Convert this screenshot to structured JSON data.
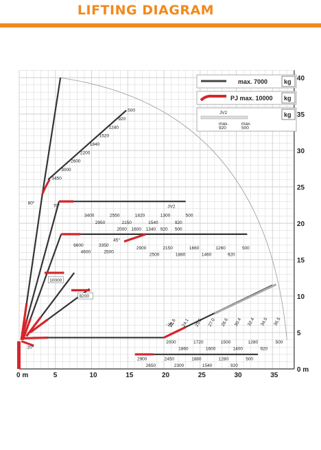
{
  "title": "LIFTING DIAGRAM",
  "legend": {
    "max_boom": "max. 7000",
    "max_pj": "PJ max. 10000",
    "unit": "kg",
    "jv2_title": "JV2",
    "jv2_left": "max.\n920",
    "jv2_right": "max.\n500"
  },
  "axes": {
    "x_ticks": [
      "0 m",
      "5",
      "10",
      "15",
      "20",
      "25",
      "30",
      "35"
    ],
    "y_ticks": [
      "5",
      "10",
      "15",
      "20",
      "25",
      "30",
      "35",
      "40"
    ],
    "y_unit": "0 m"
  },
  "angle_labels": [
    "80°",
    "70°",
    "45°",
    "20°",
    "-25°"
  ],
  "load_labels": {
    "vertical_boom": [
      "500",
      "920",
      "1240",
      "1520",
      "1840",
      "2200",
      "2600",
      "3000",
      "3450"
    ],
    "seventy_top": [
      "3400",
      "2550",
      "1820",
      "1300",
      "500"
    ],
    "seventy_bottom": [
      "2950",
      "2150",
      "1540",
      "920"
    ],
    "seventy_jv2": "JV2",
    "fortyfive_top": [
      "2000",
      "1600",
      "1340",
      "920",
      "500"
    ],
    "fortyfive_left_top": [
      "6600",
      "3350"
    ],
    "fortyfive_left_bottom": [
      "4600",
      "2500"
    ],
    "fortyfive_right_top": [
      "2900",
      "2150",
      "1660",
      "1260",
      "500"
    ],
    "fortyfive_right_bottom": [
      "2500",
      "1880",
      "1460",
      "920"
    ],
    "lower_boom_boxes": [
      "10000",
      "8200"
    ],
    "horizontal_top": [
      "2000",
      "1720",
      "1500",
      "1280",
      "500"
    ],
    "horizontal_bottom": [
      "1860",
      "1600",
      "1400",
      "920"
    ],
    "ground_top": [
      "2900",
      "2450",
      "1880",
      "1280",
      "500"
    ],
    "ground_bottom": [
      "2650",
      "2300",
      "1540",
      "920"
    ],
    "reach_diagonal": [
      "22.6",
      "24.1",
      "25.5",
      "27.0",
      "28.6",
      "30.4",
      "32.4",
      "34.5",
      "36.5"
    ]
  },
  "colors": {
    "accent": "#f08a1e",
    "boom_red": "#d4262c",
    "boom_dark": "#333333",
    "grid": "#cfcfcf"
  }
}
